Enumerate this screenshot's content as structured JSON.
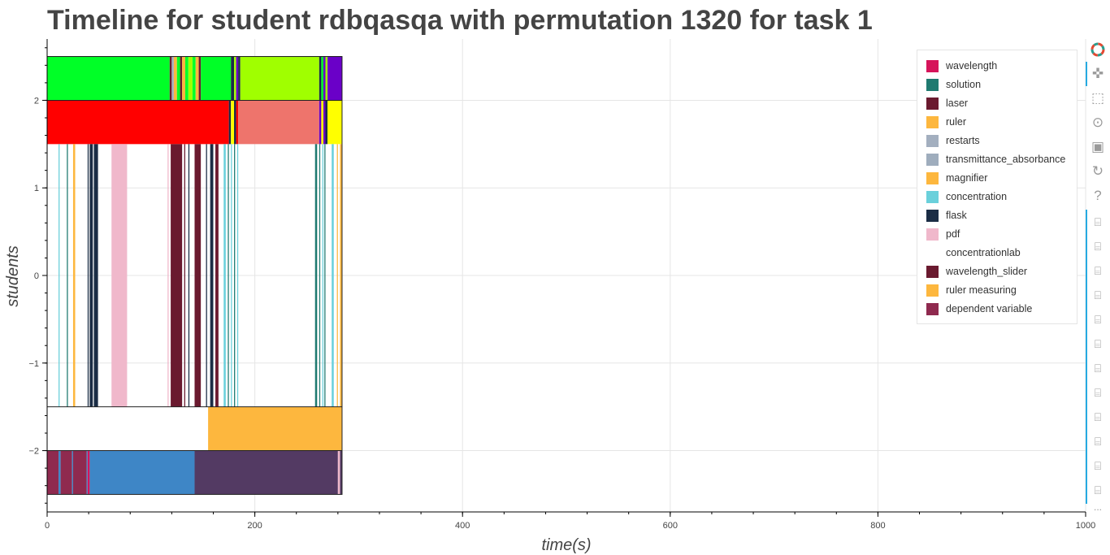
{
  "chart_data": {
    "type": "timeline",
    "title": "Timeline for student rdbqasqa with permutation 1320 for task 1",
    "xlabel": "time(s)",
    "ylabel": "students",
    "xlim": [
      0,
      1000
    ],
    "ylim": [
      -2.7,
      2.7
    ],
    "xticks": [
      0,
      200,
      400,
      600,
      800,
      1000
    ],
    "yticks": [
      -2,
      -1,
      0,
      1,
      2
    ],
    "grid": true,
    "legend_position": "top-right",
    "legend": [
      {
        "label": "wavelength",
        "color": "#d6145a"
      },
      {
        "label": "solution",
        "color": "#1f7a70"
      },
      {
        "label": "laser",
        "color": "#6a1a2f"
      },
      {
        "label": "ruler",
        "color": "#fdb73e"
      },
      {
        "label": "restarts",
        "color": "#a3afbf"
      },
      {
        "label": "transmittance_absorbance",
        "color": "#9fadbd"
      },
      {
        "label": "magnifier",
        "color": "#fdb73e"
      },
      {
        "label": "concentration",
        "color": "#6ad0db"
      },
      {
        "label": "flask",
        "color": "#1b2d45"
      },
      {
        "label": "pdf",
        "color": "#f0b8cb"
      },
      {
        "label": "concentrationlab",
        "color": "#ffffff"
      },
      {
        "label": "wavelength_slider",
        "color": "#6a1a2f"
      },
      {
        "label": "ruler measuring",
        "color": "#fdb73e"
      },
      {
        "label": "dependent variable",
        "color": "#8f2a4f"
      }
    ],
    "rows": [
      {
        "y0": 2.0,
        "y1": 2.5,
        "segments": [
          [
            0,
            118,
            "#00ff27"
          ],
          [
            118,
            120,
            "#6a1a2f"
          ],
          [
            120,
            122,
            "#a3afbf"
          ],
          [
            122,
            125,
            "#fdb73e"
          ],
          [
            125,
            128,
            "#00ff27"
          ],
          [
            128,
            130,
            "#6a1a2f"
          ],
          [
            130,
            133,
            "#fdb73e"
          ],
          [
            133,
            136,
            "#00ff27"
          ],
          [
            136,
            140,
            "#a0ff00"
          ],
          [
            140,
            143,
            "#00ff27"
          ],
          [
            143,
            146,
            "#fdb73e"
          ],
          [
            146,
            148,
            "#6a1a2f"
          ],
          [
            148,
            177,
            "#00ff27"
          ],
          [
            177,
            180,
            "#1b2d45"
          ],
          [
            180,
            182,
            "#a0ff00"
          ],
          [
            182,
            184,
            "#6a00c8"
          ],
          [
            184,
            186,
            "#1b2d45"
          ],
          [
            186,
            262,
            "#a0ff00"
          ],
          [
            262,
            264,
            "#1b2d45"
          ],
          [
            264,
            266,
            "#00ff27"
          ],
          [
            266,
            268,
            "#6a00c8"
          ],
          [
            268,
            270,
            "#a0ff00"
          ],
          [
            270,
            284,
            "#6a00c8"
          ]
        ]
      },
      {
        "y0": 1.5,
        "y1": 2.0,
        "segments": [
          [
            0,
            175,
            "#ff0000"
          ],
          [
            175,
            177,
            "#1b2d45"
          ],
          [
            177,
            180,
            "#ffff00"
          ],
          [
            180,
            182,
            "#1b2d45"
          ],
          [
            182,
            184,
            "#ff0000"
          ],
          [
            184,
            262,
            "#ee746c"
          ],
          [
            262,
            264,
            "#6a00c8"
          ],
          [
            264,
            266,
            "#ffff00"
          ],
          [
            266,
            268,
            "#6a00c8"
          ],
          [
            268,
            270,
            "#1b2d45"
          ],
          [
            270,
            284,
            "#ffff00"
          ]
        ]
      },
      {
        "y0": -1.5,
        "y1": 1.5,
        "segments": [
          [
            11,
            12,
            "#6ad0db"
          ],
          [
            19,
            20,
            "#1f7a70"
          ],
          [
            25,
            27,
            "#fdb73e"
          ],
          [
            39,
            40,
            "#1b2d45"
          ],
          [
            41,
            44,
            "#1b2d45"
          ],
          [
            45,
            49,
            "#1b2d45"
          ],
          [
            62,
            77,
            "#f0b8cb"
          ],
          [
            116,
            117,
            "#f0b8cb"
          ],
          [
            119,
            130,
            "#6a1a2f"
          ],
          [
            132,
            133,
            "#6a1a2f"
          ],
          [
            136,
            137,
            "#1b2d45"
          ],
          [
            142,
            148,
            "#6a1a2f"
          ],
          [
            153,
            154,
            "#1b2d45"
          ],
          [
            157,
            160,
            "#1b2d45"
          ],
          [
            162,
            165,
            "#6a1a2f"
          ],
          [
            170,
            172,
            "#6ad0db"
          ],
          [
            174,
            175,
            "#1f7a70"
          ],
          [
            177,
            178,
            "#6ad0db"
          ],
          [
            180,
            181,
            "#1f7a70"
          ],
          [
            183,
            184,
            "#6ad0db"
          ],
          [
            258,
            260,
            "#1f7a70"
          ],
          [
            262,
            263,
            "#1f7a70"
          ],
          [
            265,
            266,
            "#6ad0db"
          ],
          [
            267,
            268,
            "#1f7a70"
          ],
          [
            274,
            276,
            "#6ad0db"
          ],
          [
            279,
            280,
            "#fdb73e"
          ],
          [
            282,
            284,
            "#fdb73e"
          ]
        ]
      },
      {
        "y0": -2.0,
        "y1": -1.5,
        "segments": [
          [
            155,
            284,
            "#fdb73e"
          ]
        ]
      },
      {
        "y0": -2.5,
        "y1": -2.0,
        "segments": [
          [
            0,
            11,
            "#8f2a4f"
          ],
          [
            11,
            13,
            "#3e86c6"
          ],
          [
            13,
            24,
            "#8f2a4f"
          ],
          [
            24,
            25,
            "#3e86c6"
          ],
          [
            25,
            38,
            "#8f2a4f"
          ],
          [
            38,
            39,
            "#3e86c6"
          ],
          [
            39,
            41,
            "#d6145a"
          ],
          [
            41,
            142,
            "#3e86c6"
          ],
          [
            142,
            280,
            "#533a63"
          ],
          [
            280,
            282,
            "#f0b8cb"
          ],
          [
            282,
            284,
            "#533a63"
          ]
        ]
      }
    ],
    "outlines": [
      [
        -2.5,
        2.5,
        0,
        284
      ]
    ]
  },
  "toolbar": {
    "logo_icon": "bokeh-logo-icon",
    "tools": [
      "pan-icon",
      "box-zoom-icon",
      "wheel-zoom-icon",
      "save-icon",
      "reset-icon",
      "help-icon"
    ],
    "hover_count": 12,
    "more_label": "..."
  }
}
